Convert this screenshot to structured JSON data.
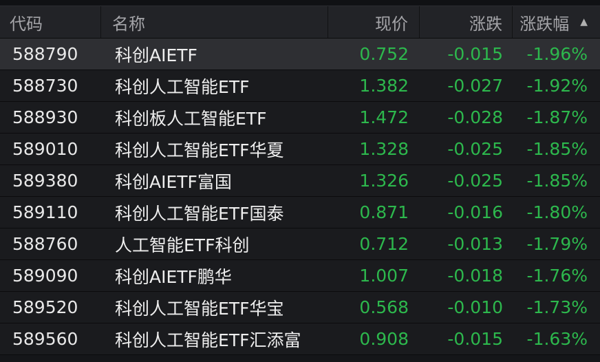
{
  "header": {
    "code": "代码",
    "name": "名称",
    "price": "现价",
    "change": "涨跌",
    "pct": "涨跌幅",
    "sort_icon": "triangle-up-icon"
  },
  "colors": {
    "down": "#2db84d"
  },
  "rows": [
    {
      "code": "588790",
      "name": "科创AIETF",
      "price": "0.752",
      "change": "-0.015",
      "pct": "-1.96%"
    },
    {
      "code": "588730",
      "name": "科创人工智能ETF",
      "price": "1.382",
      "change": "-0.027",
      "pct": "-1.92%"
    },
    {
      "code": "588930",
      "name": "科创板人工智能ETF",
      "price": "1.472",
      "change": "-0.028",
      "pct": "-1.87%"
    },
    {
      "code": "589010",
      "name": "科创人工智能ETF华夏",
      "price": "1.328",
      "change": "-0.025",
      "pct": "-1.85%"
    },
    {
      "code": "589380",
      "name": "科创AIETF富国",
      "price": "1.326",
      "change": "-0.025",
      "pct": "-1.85%"
    },
    {
      "code": "589110",
      "name": "科创人工智能ETF国泰",
      "price": "0.871",
      "change": "-0.016",
      "pct": "-1.80%"
    },
    {
      "code": "588760",
      "name": "人工智能ETF科创",
      "price": "0.712",
      "change": "-0.013",
      "pct": "-1.79%"
    },
    {
      "code": "589090",
      "name": "科创AIETF鹏华",
      "price": "1.007",
      "change": "-0.018",
      "pct": "-1.76%"
    },
    {
      "code": "589520",
      "name": "科创人工智能ETF华宝",
      "price": "0.568",
      "change": "-0.010",
      "pct": "-1.73%"
    },
    {
      "code": "589560",
      "name": "科创人工智能ETF汇添富",
      "price": "0.908",
      "change": "-0.015",
      "pct": "-1.63%"
    }
  ]
}
